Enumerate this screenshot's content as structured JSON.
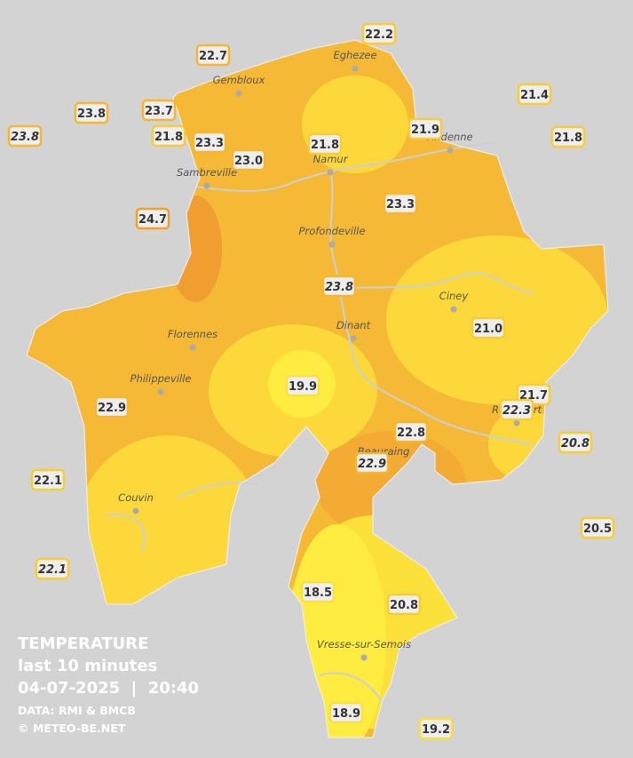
{
  "stations": [
    {
      "text": "22.2",
      "italic": false
    },
    {
      "text": "22.7",
      "italic": false
    },
    {
      "text": "21.4",
      "italic": false
    },
    {
      "text": "23.8",
      "italic": false
    },
    {
      "text": "23.7",
      "italic": false
    },
    {
      "text": "21.9",
      "italic": false
    },
    {
      "text": "23.8",
      "italic": true
    },
    {
      "text": "21.8",
      "italic": false
    },
    {
      "text": "23.3",
      "italic": false
    },
    {
      "text": "21.8",
      "italic": false
    },
    {
      "text": "21.8",
      "italic": false
    },
    {
      "text": "23.0",
      "italic": false
    },
    {
      "text": "23.3",
      "italic": false
    },
    {
      "text": "24.7",
      "italic": false
    },
    {
      "text": "23.8",
      "italic": true
    },
    {
      "text": "21.0",
      "italic": false
    },
    {
      "text": "19.9",
      "italic": false
    },
    {
      "text": "21.7",
      "italic": false
    },
    {
      "text": "22.3",
      "italic": true
    },
    {
      "text": "22.9",
      "italic": false
    },
    {
      "text": "22.8",
      "italic": false
    },
    {
      "text": "20.8",
      "italic": true
    },
    {
      "text": "22.9",
      "italic": true
    },
    {
      "text": "22.1",
      "italic": false
    },
    {
      "text": "20.5",
      "italic": false
    },
    {
      "text": "22.1",
      "italic": true
    },
    {
      "text": "18.5",
      "italic": false
    },
    {
      "text": "20.8",
      "italic": false
    },
    {
      "text": "18.9",
      "italic": false
    },
    {
      "text": "19.2",
      "italic": false
    }
  ],
  "places": [
    "Eghezee",
    "Gembloux",
    "Andenne",
    "Namur",
    "Sambreville",
    "Profondeville",
    "Ciney",
    "Dinant",
    "Florennes",
    "Philippeville",
    "Rochefort",
    "Beauraing",
    "Couvin",
    "Vresse-sur-Semois"
  ],
  "legend": {
    "title": "TEMPERATURE",
    "period": "last 10 minutes",
    "datetime": "04-07-2025  |  20:40",
    "source": "DATA: RMI & BMCB",
    "copyright": "© METEO-BE.NET"
  }
}
